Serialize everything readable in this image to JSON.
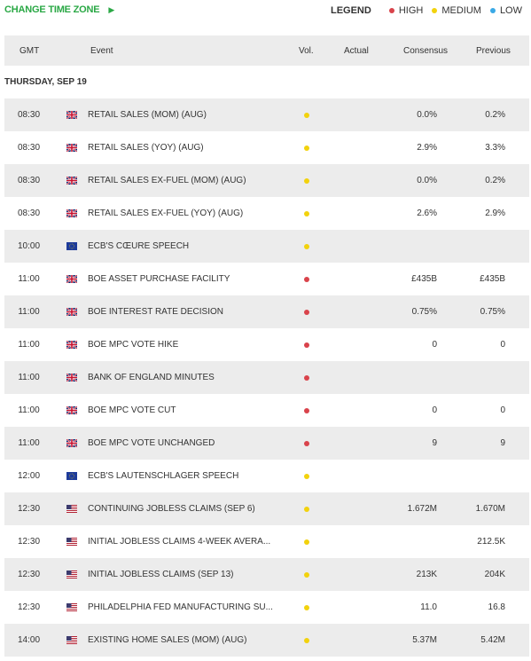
{
  "top": {
    "change_time_zone": "CHANGE TIME ZONE",
    "legend_title": "LEGEND",
    "legend_items": [
      {
        "label": "HIGH",
        "color": "#d9434b"
      },
      {
        "label": "MEDIUM",
        "color": "#f2d20d"
      },
      {
        "label": "LOW",
        "color": "#3aa9e6"
      }
    ]
  },
  "table_header": {
    "gmt": "GMT",
    "event": "Event",
    "vol": "Vol.",
    "actual": "Actual",
    "consensus": "Consensus",
    "previous": "Previous"
  },
  "day_header": "THURSDAY, SEP 19",
  "colors": {
    "high": "#d9434b",
    "medium": "#f2d20d",
    "accent": "#2aa845",
    "row_alt": "#ececec"
  },
  "rows": [
    {
      "time": "08:30",
      "flag": "gb",
      "event": "RETAIL SALES (MOM) (AUG)",
      "vol": "medium",
      "actual": "",
      "consensus": "0.0%",
      "previous": "0.2%"
    },
    {
      "time": "08:30",
      "flag": "gb",
      "event": "RETAIL SALES (YOY) (AUG)",
      "vol": "medium",
      "actual": "",
      "consensus": "2.9%",
      "previous": "3.3%"
    },
    {
      "time": "08:30",
      "flag": "gb",
      "event": "RETAIL SALES EX-FUEL (MOM) (AUG)",
      "vol": "medium",
      "actual": "",
      "consensus": "0.0%",
      "previous": "0.2%"
    },
    {
      "time": "08:30",
      "flag": "gb",
      "event": "RETAIL SALES EX-FUEL (YOY) (AUG)",
      "vol": "medium",
      "actual": "",
      "consensus": "2.6%",
      "previous": "2.9%"
    },
    {
      "time": "10:00",
      "flag": "eu",
      "event": "ECB'S CŒURE SPEECH",
      "vol": "medium",
      "actual": "",
      "consensus": "",
      "previous": ""
    },
    {
      "time": "11:00",
      "flag": "gb",
      "event": "BOE ASSET PURCHASE FACILITY",
      "vol": "high",
      "actual": "",
      "consensus": "£435B",
      "previous": "£435B"
    },
    {
      "time": "11:00",
      "flag": "gb",
      "event": "BOE INTEREST RATE DECISION",
      "vol": "high",
      "actual": "",
      "consensus": "0.75%",
      "previous": "0.75%"
    },
    {
      "time": "11:00",
      "flag": "gb",
      "event": "BOE MPC VOTE HIKE",
      "vol": "high",
      "actual": "",
      "consensus": "0",
      "previous": "0"
    },
    {
      "time": "11:00",
      "flag": "gb",
      "event": "BANK OF ENGLAND MINUTES",
      "vol": "high",
      "actual": "",
      "consensus": "",
      "previous": ""
    },
    {
      "time": "11:00",
      "flag": "gb",
      "event": "BOE MPC VOTE CUT",
      "vol": "high",
      "actual": "",
      "consensus": "0",
      "previous": "0"
    },
    {
      "time": "11:00",
      "flag": "gb",
      "event": "BOE MPC VOTE UNCHANGED",
      "vol": "high",
      "actual": "",
      "consensus": "9",
      "previous": "9"
    },
    {
      "time": "12:00",
      "flag": "eu",
      "event": "ECB'S LAUTENSCHLAGER SPEECH",
      "vol": "medium",
      "actual": "",
      "consensus": "",
      "previous": ""
    },
    {
      "time": "12:30",
      "flag": "us",
      "event": "CONTINUING JOBLESS CLAIMS (SEP 6)",
      "vol": "medium",
      "actual": "",
      "consensus": "1.672M",
      "previous": "1.670M"
    },
    {
      "time": "12:30",
      "flag": "us",
      "event": "INITIAL JOBLESS CLAIMS 4-WEEK AVERA...",
      "vol": "medium",
      "actual": "",
      "consensus": "",
      "previous": "212.5K"
    },
    {
      "time": "12:30",
      "flag": "us",
      "event": "INITIAL JOBLESS CLAIMS (SEP 13)",
      "vol": "medium",
      "actual": "",
      "consensus": "213K",
      "previous": "204K"
    },
    {
      "time": "12:30",
      "flag": "us",
      "event": "PHILADELPHIA FED MANUFACTURING SU...",
      "vol": "medium",
      "actual": "",
      "consensus": "11.0",
      "previous": "16.8"
    },
    {
      "time": "14:00",
      "flag": "us",
      "event": "EXISTING HOME SALES (MOM) (AUG)",
      "vol": "medium",
      "actual": "",
      "consensus": "5.37M",
      "previous": "5.42M"
    }
  ]
}
